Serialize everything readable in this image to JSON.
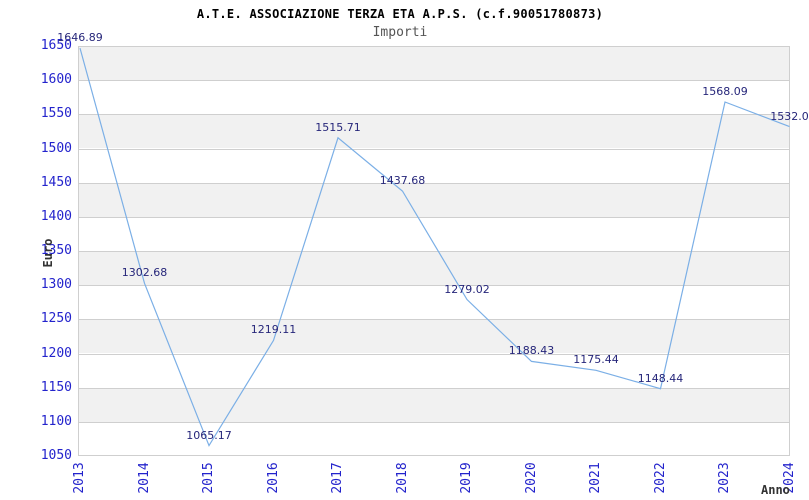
{
  "chart_data": {
    "type": "line",
    "title": "A.T.E. ASSOCIAZIONE TERZA ETA A.P.S. (c.f.90051780873)",
    "subtitle": "Importi",
    "xlabel": "Anno",
    "ylabel": "Euro",
    "categories": [
      "2013",
      "2014",
      "2015",
      "2016",
      "2017",
      "2018",
      "2019",
      "2020",
      "2021",
      "2022",
      "2023",
      "2024"
    ],
    "values": [
      1646.89,
      1302.68,
      1065.17,
      1219.11,
      1515.71,
      1437.68,
      1279.02,
      1188.43,
      1175.44,
      1148.44,
      1568.09,
      1532.0
    ],
    "point_labels": [
      "1646.89",
      "1302.68",
      "1065.17",
      "1219.11",
      "1515.71",
      "1437.68",
      "1279.02",
      "1188.43",
      "1175.44",
      "1148.44",
      "1568.09",
      "1532.0"
    ],
    "ylim": [
      1050,
      1650
    ],
    "ytick_step": 50,
    "grid": true,
    "banded_background": true,
    "legend_position": "none",
    "x_tick_rotation": -90,
    "colors": {
      "line": "#7bafe6",
      "axis_tick_label": "#2323cc",
      "data_label": "#26267a",
      "band": "#f1f1f1",
      "gridline": "#cfcfcf",
      "title": "#000000",
      "subtitle": "#555555",
      "axis_name": "#333333",
      "background": "#ffffff"
    }
  }
}
